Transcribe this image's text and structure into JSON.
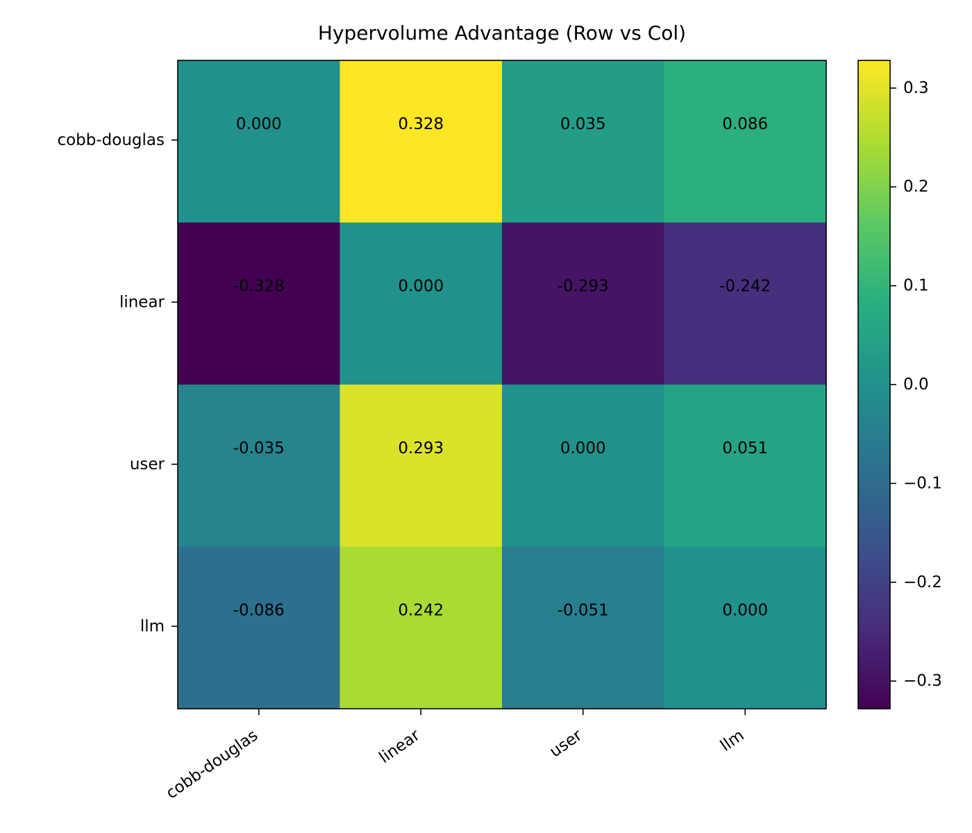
{
  "chart_data": {
    "type": "heatmap",
    "title": "Hypervolume Advantage (Row vs Col)",
    "xlabel": "",
    "ylabel": "",
    "rows": [
      "cobb-douglas",
      "linear",
      "user",
      "llm"
    ],
    "columns": [
      "cobb-douglas",
      "linear",
      "user",
      "llm"
    ],
    "values": [
      [
        0.0,
        0.328,
        0.035,
        0.086
      ],
      [
        -0.328,
        0.0,
        -0.293,
        -0.242
      ],
      [
        -0.035,
        0.293,
        0.0,
        0.051
      ],
      [
        -0.086,
        0.242,
        -0.051,
        0.0
      ]
    ],
    "value_labels": [
      [
        "0.000",
        "0.328",
        "0.035",
        "0.086"
      ],
      [
        "-0.328",
        "0.000",
        "-0.293",
        "-0.242"
      ],
      [
        "-0.035",
        "0.293",
        "0.000",
        "0.051"
      ],
      [
        "-0.086",
        "0.242",
        "-0.051",
        "0.000"
      ]
    ],
    "colormap": "viridis",
    "color_range": [
      -0.328,
      0.328
    ],
    "colorbar": {
      "ticks": [
        0.3,
        0.2,
        0.1,
        0.0,
        -0.1,
        -0.2,
        -0.3
      ],
      "tick_labels": [
        "0.3",
        "0.2",
        "0.1",
        "0.0",
        "−0.1",
        "−0.2",
        "−0.3"
      ],
      "placement": "right"
    },
    "grid": false,
    "legend": "none"
  }
}
